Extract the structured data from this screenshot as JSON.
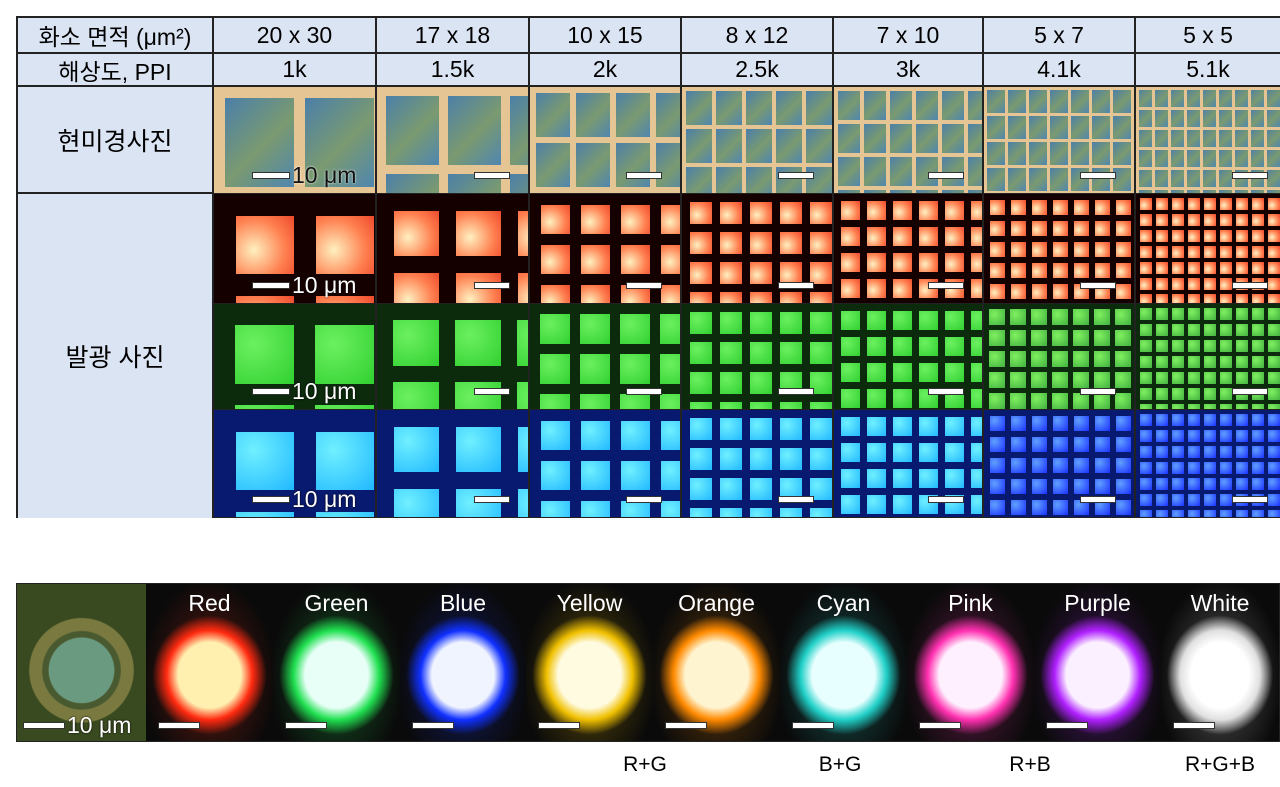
{
  "table": {
    "row_header_area": "화소 면적 (μm²)",
    "row_header_ppi": "해상도, PPI",
    "row_label_micro": "현미경사진",
    "row_label_emission": "발광 사진",
    "scale_bar": "10 μm",
    "columns": [
      {
        "area": "20 x 30",
        "ppi": "1k"
      },
      {
        "area": "17 x 18",
        "ppi": "1.5k"
      },
      {
        "area": "10 x 15",
        "ppi": "2k"
      },
      {
        "area": "8 x 12",
        "ppi": "2.5k"
      },
      {
        "area": "7 x 10",
        "ppi": "3k"
      },
      {
        "area": "5 x 7",
        "ppi": "4.1k"
      },
      {
        "area": "5 x 5",
        "ppi": "5.1k"
      }
    ],
    "colors": {
      "micro_gap": "#e6c594",
      "micro_pixel": "#4f86b0",
      "red": "#ff3a1a",
      "green": "#3fe43a",
      "blue": "#2fd2ff"
    }
  },
  "strip": {
    "scale_bar": "10 μm",
    "panels": [
      {
        "name": "Red",
        "color": "#ff2a10",
        "core": "#fff0b0"
      },
      {
        "name": "Green",
        "color": "#20e050",
        "core": "#e8fff8"
      },
      {
        "name": "Blue",
        "color": "#1030ff",
        "core": "#f0f4ff"
      },
      {
        "name": "Yellow",
        "color": "#f0c000",
        "core": "#fffbe0"
      },
      {
        "name": "Orange",
        "color": "#ff8a00",
        "core": "#fff4d0"
      },
      {
        "name": "Cyan",
        "color": "#20d0c8",
        "core": "#e8ffff"
      },
      {
        "name": "Pink",
        "color": "#ff30b0",
        "core": "#fff0ff"
      },
      {
        "name": "Purple",
        "color": "#b020ff",
        "core": "#fbf0ff"
      },
      {
        "name": "White",
        "color": "#e0e0e0",
        "core": "#ffffff"
      }
    ],
    "mixes": [
      "R+G",
      "B+G",
      "R+B",
      "R+G+B"
    ]
  }
}
